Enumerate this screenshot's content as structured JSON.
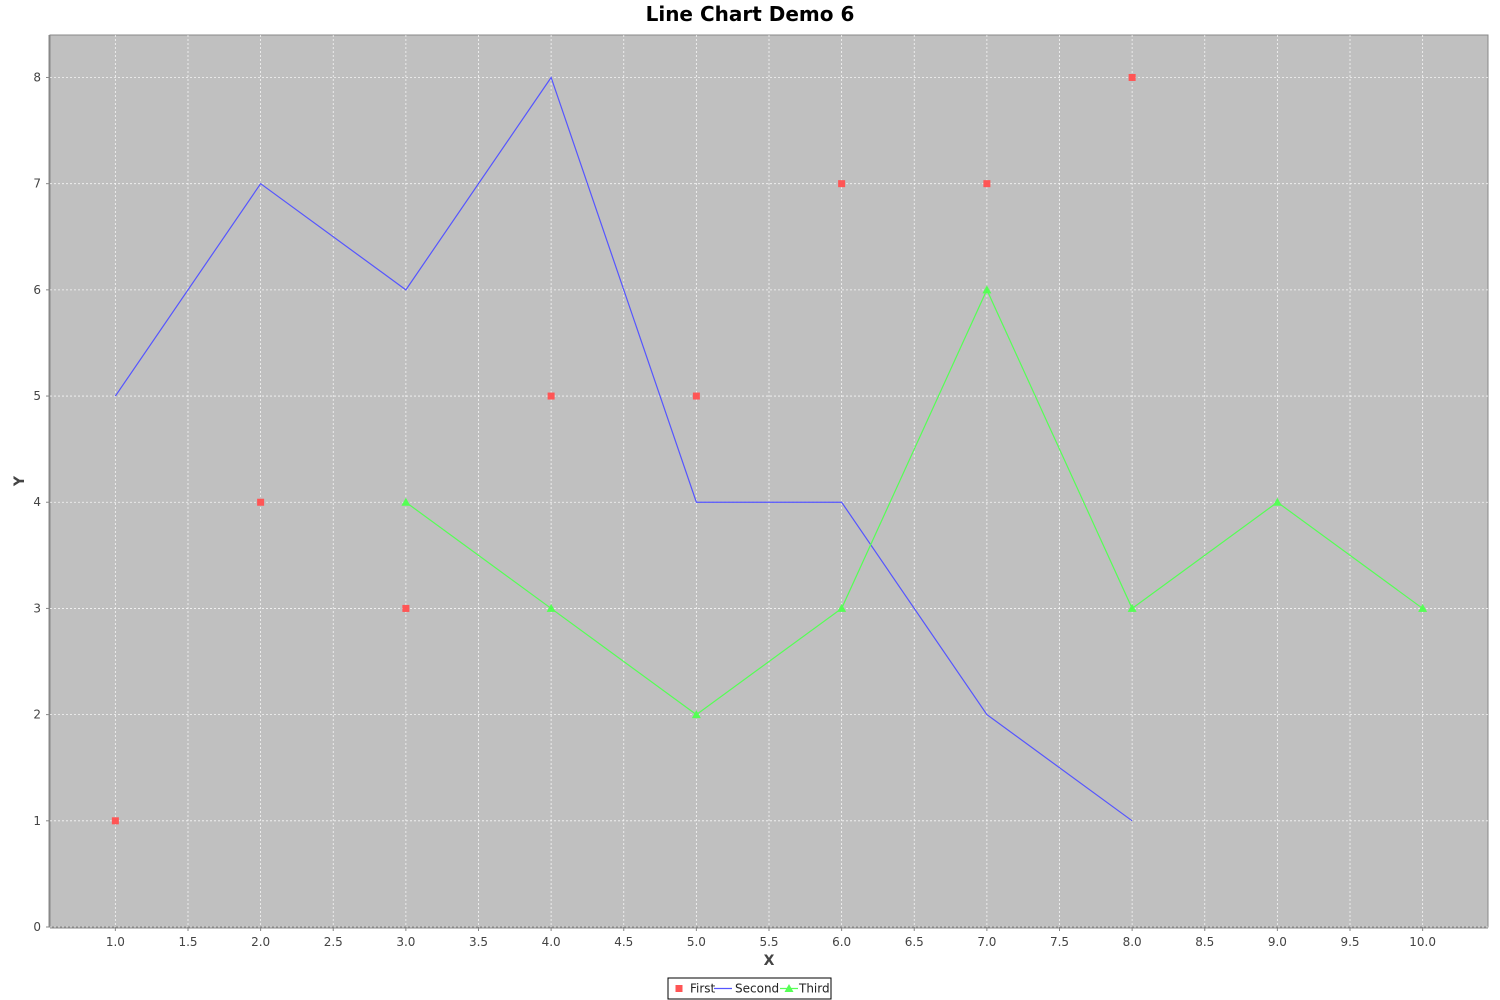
{
  "chart_data": {
    "type": "line",
    "title": "Line Chart Demo 6",
    "xlabel": "X",
    "ylabel": "Y",
    "xlim": [
      0.55,
      10.45
    ],
    "ylim": [
      0,
      8.4
    ],
    "x_ticks": [
      "1.0",
      "1.5",
      "2.0",
      "2.5",
      "3.0",
      "3.5",
      "4.0",
      "4.5",
      "5.0",
      "5.5",
      "6.0",
      "6.5",
      "7.0",
      "7.5",
      "8.0",
      "8.5",
      "9.0",
      "9.5",
      "10.0"
    ],
    "y_ticks": [
      "0",
      "1",
      "2",
      "3",
      "4",
      "5",
      "6",
      "7",
      "8"
    ],
    "grid": true,
    "legend_position": "bottom",
    "plot_background": "#c0c0c0",
    "series": [
      {
        "name": "First",
        "style": "markers",
        "marker": "square",
        "color": "#ff5555",
        "x": [
          1,
          2,
          3,
          4,
          5,
          6,
          7,
          8
        ],
        "y": [
          1,
          4,
          3,
          5,
          5,
          7,
          7,
          8
        ]
      },
      {
        "name": "Second",
        "style": "line",
        "marker": "none",
        "color": "#5555ff",
        "x": [
          1,
          2,
          3,
          4,
          5,
          6,
          7,
          8
        ],
        "y": [
          5,
          7,
          6,
          8,
          4,
          4,
          2,
          1
        ]
      },
      {
        "name": "Third",
        "style": "line+markers",
        "marker": "triangle",
        "color": "#55ff55",
        "x": [
          3,
          4,
          5,
          6,
          7,
          8,
          9,
          10
        ],
        "y": [
          4,
          3,
          2,
          3,
          6,
          3,
          4,
          3
        ]
      }
    ]
  }
}
